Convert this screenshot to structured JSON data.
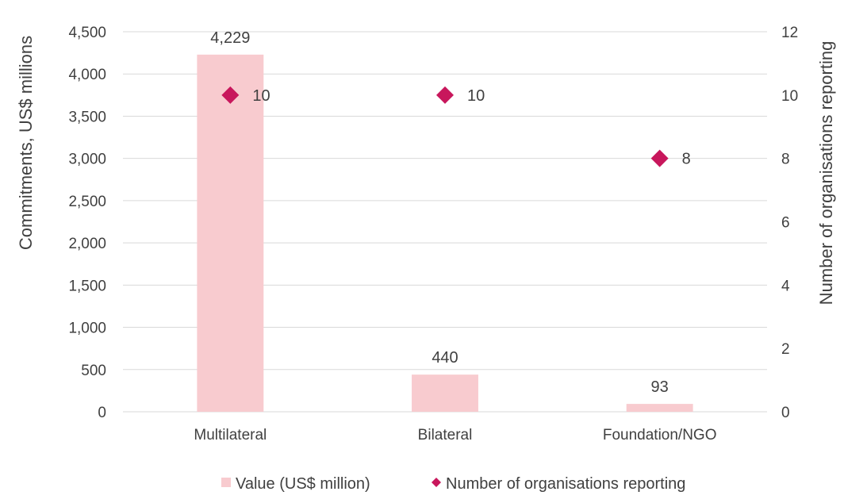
{
  "chart_data": {
    "type": "bar",
    "categories": [
      "Multilateral",
      "Bilateral",
      "Foundation/NGO"
    ],
    "series": [
      {
        "name": "Value (US$ million)",
        "type": "bar",
        "axis": "left",
        "values": [
          4229,
          440,
          93
        ],
        "labels": [
          "4,229",
          "440",
          "93"
        ]
      },
      {
        "name": "Number of organisations reporting",
        "type": "scatter",
        "marker": "diamond",
        "axis": "right",
        "values": [
          10,
          10,
          8
        ],
        "labels": [
          "10",
          "10",
          "8"
        ]
      }
    ],
    "ylabel": "Commitments, US$ millions",
    "y2label": "Number of organisations reporting",
    "ylim": [
      0,
      4500
    ],
    "y2lim": [
      0,
      12
    ],
    "yticks": [
      "0",
      "500",
      "1,000",
      "1,500",
      "2,000",
      "2,500",
      "3,000",
      "3,500",
      "4,000",
      "4,500"
    ],
    "y2ticks": [
      "0",
      "2",
      "4",
      "6",
      "8",
      "10",
      "12"
    ],
    "grid": true,
    "legend_position": "bottom",
    "colors": {
      "bar": "#F8CBCF",
      "marker": "#C8175C",
      "grid": "#D9D9D9",
      "text": "#404040"
    }
  }
}
